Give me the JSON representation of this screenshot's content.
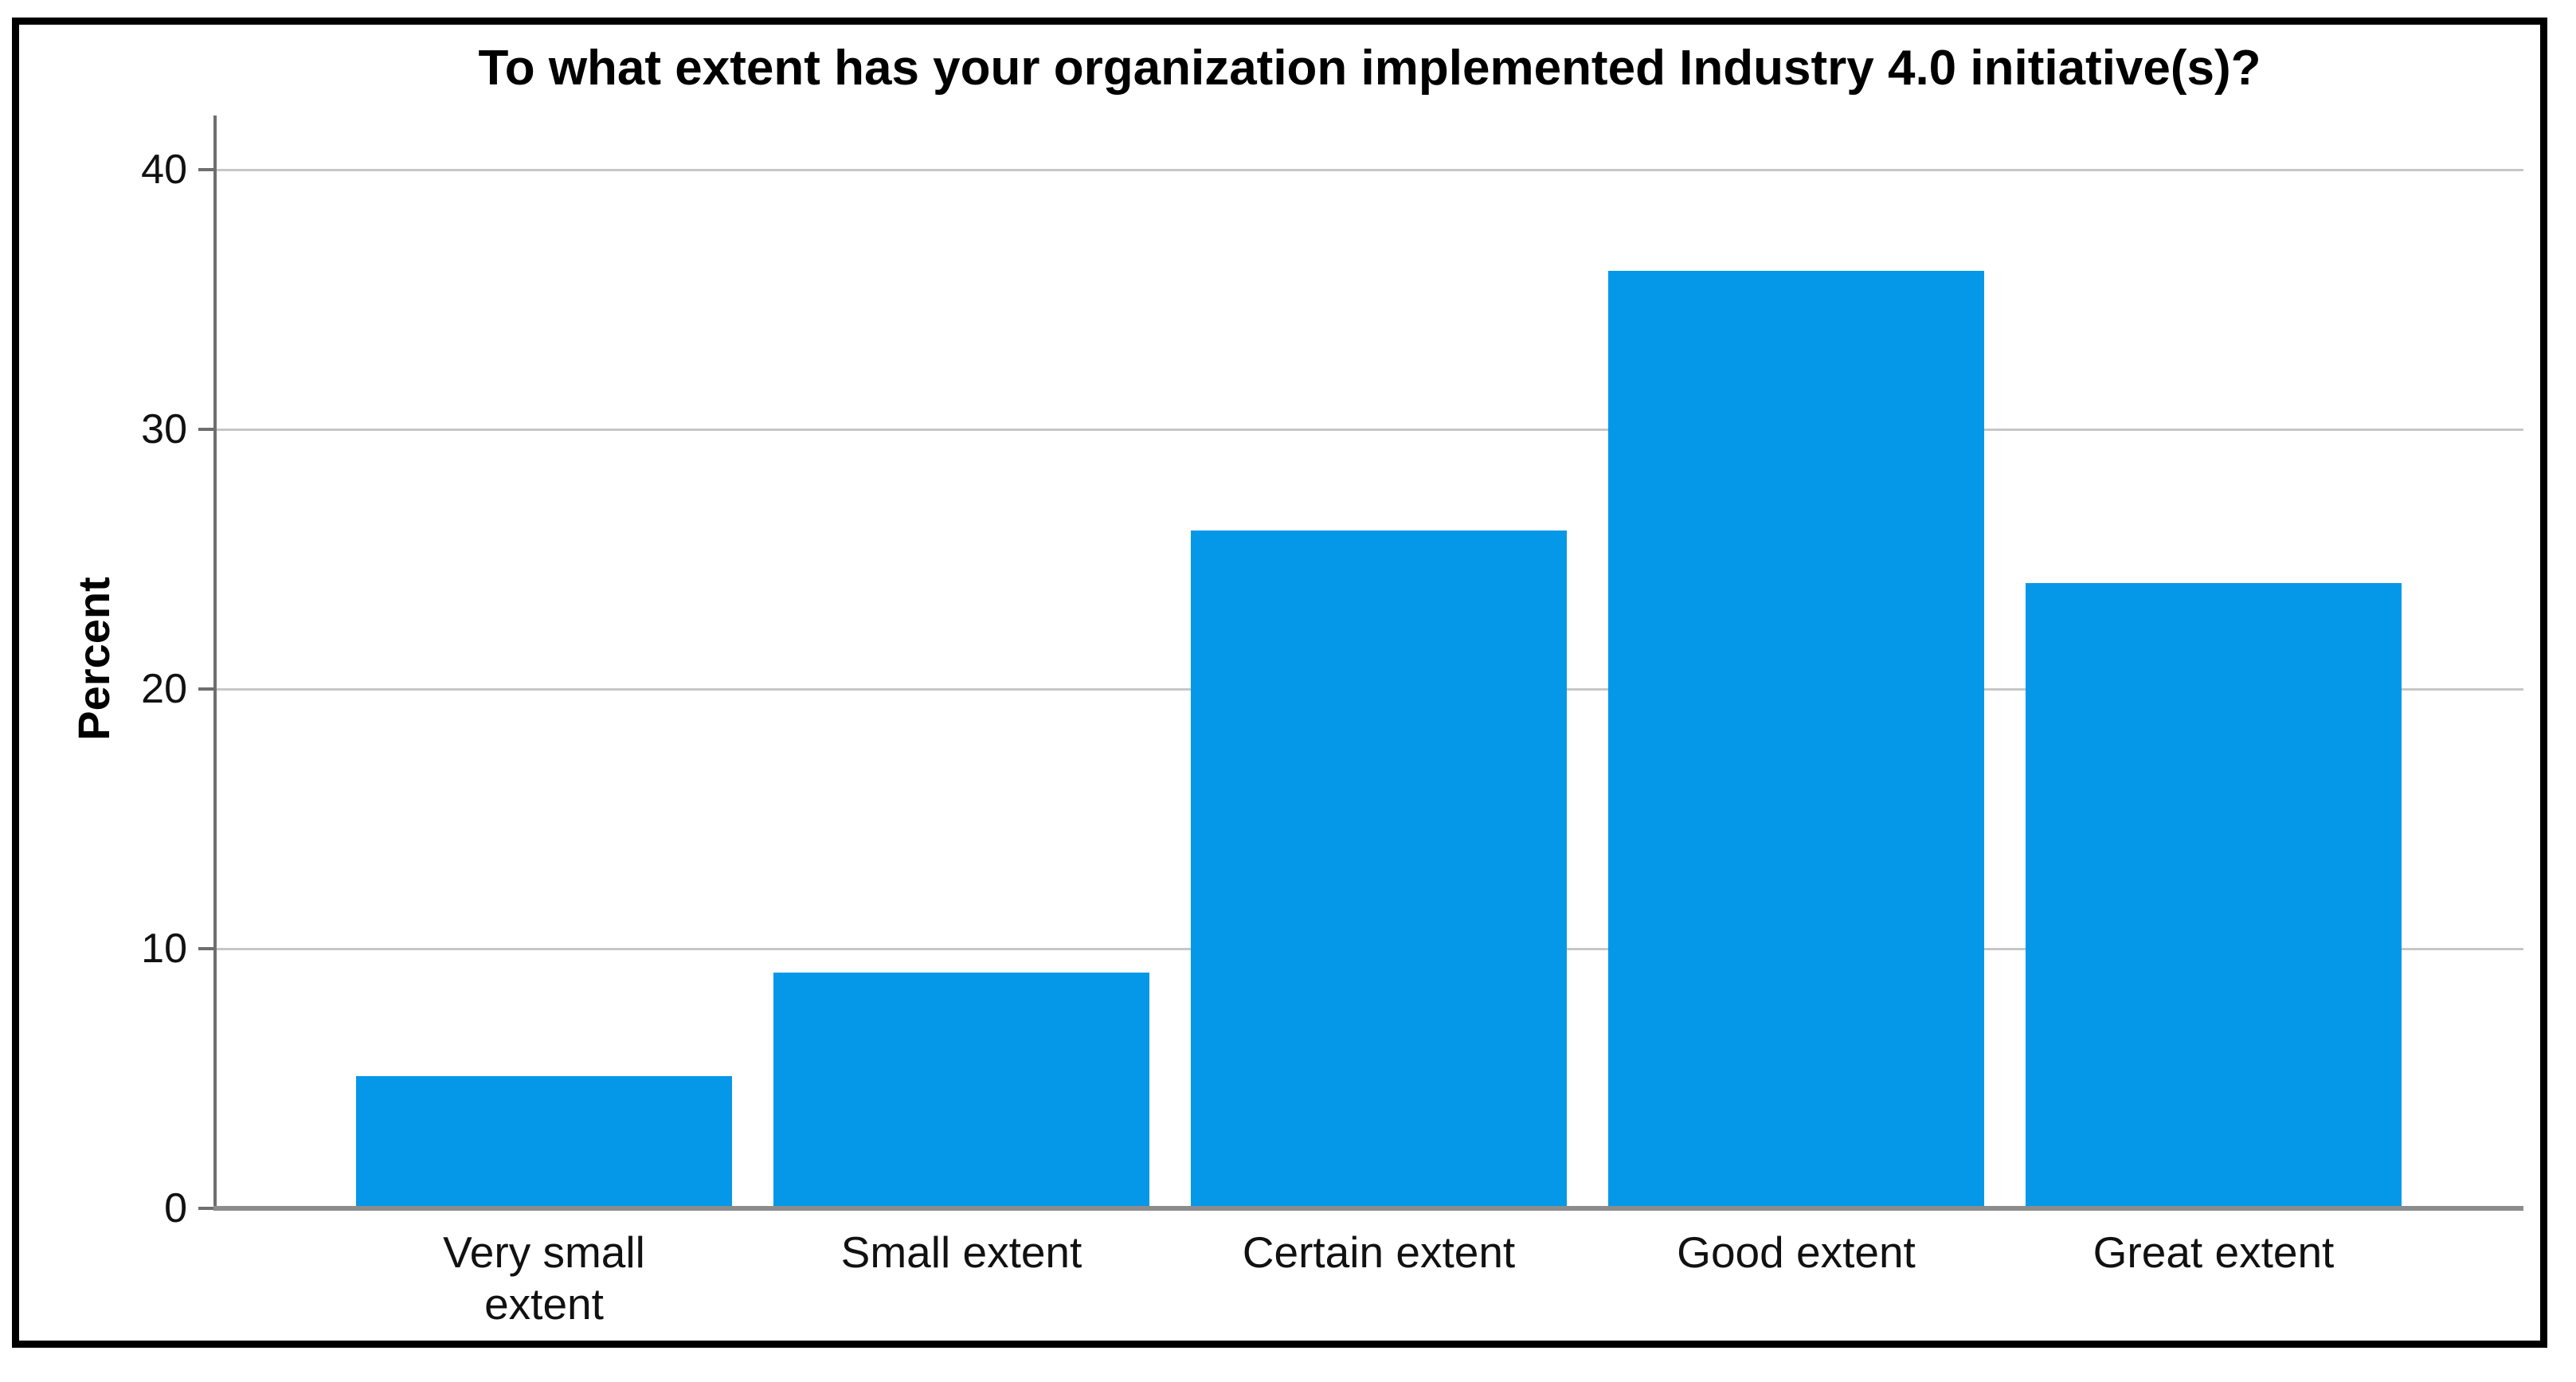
{
  "chart_data": {
    "type": "bar",
    "title": "To what extent has your organization implemented Industry 4.0 initiative(s)?",
    "xlabel": "",
    "ylabel": "Percent",
    "categories": [
      "Very small extent",
      "Small extent",
      "Certain extent",
      "Good extent",
      "Great extent"
    ],
    "category_label_lines": [
      [
        "Very small",
        "extent"
      ],
      [
        "Small extent"
      ],
      [
        "Certain extent"
      ],
      [
        "Good extent"
      ],
      [
        "Great extent"
      ]
    ],
    "values": [
      5,
      9,
      26,
      36,
      24
    ],
    "unit": "percent",
    "ylim": [
      0,
      42
    ],
    "yticks": [
      0,
      10,
      20,
      30,
      40
    ],
    "grid": "horizontal",
    "legend": "none",
    "colors": {
      "bar": "#0598E8",
      "gridline": "#C7C7C7",
      "axis_line": "#6E6E6E",
      "baseline": "#8C8C8C",
      "text": "#000000",
      "frame_border": "#000000",
      "background": "#FFFFFF"
    }
  }
}
